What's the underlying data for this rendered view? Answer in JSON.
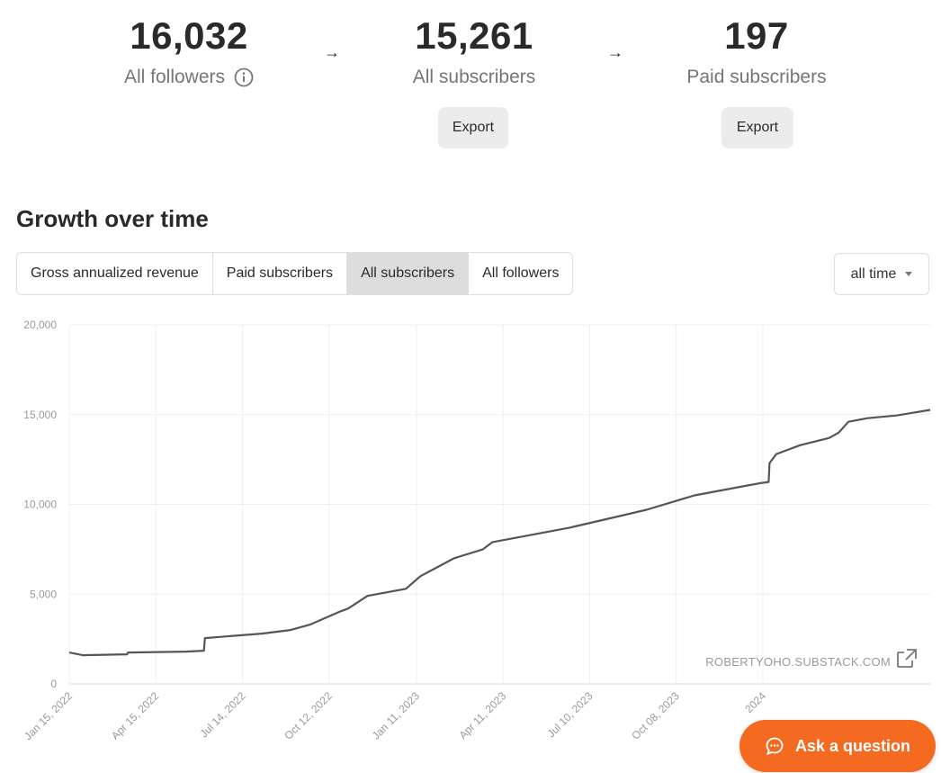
{
  "stats": {
    "followers": {
      "value": "16,032",
      "label": "All followers"
    },
    "subscribers": {
      "value": "15,261",
      "label": "All subscribers",
      "export_label": "Export"
    },
    "paid": {
      "value": "197",
      "label": "Paid subscribers",
      "export_label": "Export"
    }
  },
  "arrows": {
    "symbol": "→"
  },
  "growth": {
    "title": "Growth over time",
    "tabs": [
      {
        "label": "Gross annualized revenue",
        "active": false
      },
      {
        "label": "Paid subscribers",
        "active": false
      },
      {
        "label": "All subscribers",
        "active": true
      },
      {
        "label": "All followers",
        "active": false
      }
    ],
    "range": {
      "value": "all time"
    }
  },
  "chart_data": {
    "type": "line",
    "series": [
      {
        "name": "All subscribers",
        "color": "#555555",
        "points": [
          [
            0,
            1750
          ],
          [
            14,
            1600
          ],
          [
            60,
            1650
          ],
          [
            61,
            1750
          ],
          [
            121,
            1800
          ],
          [
            140,
            1850
          ],
          [
            141,
            2550
          ],
          [
            200,
            2800
          ],
          [
            230,
            3000
          ],
          [
            250,
            3300
          ],
          [
            280,
            4000
          ],
          [
            290,
            4200
          ],
          [
            310,
            4900
          ],
          [
            350,
            5300
          ],
          [
            365,
            6000
          ],
          [
            400,
            7000
          ],
          [
            430,
            7500
          ],
          [
            440,
            7900
          ],
          [
            480,
            8300
          ],
          [
            520,
            8700
          ],
          [
            560,
            9200
          ],
          [
            600,
            9700
          ],
          [
            650,
            10500
          ],
          [
            700,
            11000
          ],
          [
            720,
            11200
          ],
          [
            727,
            11250
          ],
          [
            728,
            12300
          ],
          [
            735,
            12800
          ],
          [
            760,
            13300
          ],
          [
            790,
            13700
          ],
          [
            800,
            14000
          ],
          [
            810,
            14600
          ],
          [
            830,
            14800
          ],
          [
            860,
            14950
          ],
          [
            895,
            15261
          ]
        ]
      }
    ],
    "x_ticks": [
      {
        "day": 0,
        "label": "Jan 15, 2022"
      },
      {
        "day": 90,
        "label": "Apr 15, 2022"
      },
      {
        "day": 180,
        "label": "Jul 14, 2022"
      },
      {
        "day": 270,
        "label": "Oct 12, 2022"
      },
      {
        "day": 361,
        "label": "Jan 11, 2023"
      },
      {
        "day": 451,
        "label": "Apr 11, 2023"
      },
      {
        "day": 541,
        "label": "Jul 10, 2023"
      },
      {
        "day": 631,
        "label": "Oct 08, 2023"
      },
      {
        "day": 721,
        "label": "2024"
      }
    ],
    "y_ticks": [
      {
        "value": 0,
        "label": "0"
      },
      {
        "value": 5000,
        "label": "5,000"
      },
      {
        "value": 10000,
        "label": "10,000"
      },
      {
        "value": 15000,
        "label": "15,000"
      },
      {
        "value": 20000,
        "label": "20,000"
      }
    ],
    "xlim": [
      0,
      895
    ],
    "ylim": [
      0,
      20000
    ],
    "grid": true,
    "watermark": "ROBERTYOHO.SUBSTACK.COM"
  },
  "ask_button": {
    "label": "Ask a question"
  }
}
